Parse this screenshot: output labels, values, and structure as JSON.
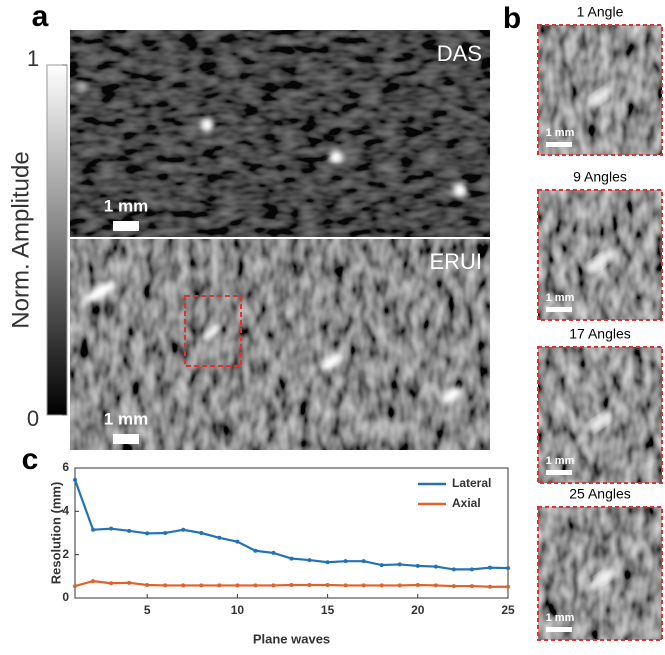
{
  "panel_a": {
    "label": "a",
    "images": [
      {
        "title": "DAS",
        "scale_bar": "1 mm"
      },
      {
        "title": "ERUI",
        "scale_bar": "1 mm"
      }
    ],
    "colorbar": {
      "title": "Norm. Amplitude",
      "range": [
        0,
        1
      ],
      "ticks": [
        0,
        1
      ]
    }
  },
  "panel_b": {
    "label": "b",
    "images": [
      {
        "title": "1 Angle",
        "scale_bar": "1 mm"
      },
      {
        "title": "9 Angles",
        "scale_bar": "1 mm"
      },
      {
        "title": "17 Angles",
        "scale_bar": "1 mm"
      },
      {
        "title": "25 Angles",
        "scale_bar": "1 mm"
      }
    ]
  },
  "panel_c": {
    "label": "c"
  },
  "chart_data": {
    "type": "line",
    "x_label": "Plane waves",
    "y_label": "Resolution (mm)",
    "x": [
      1,
      2,
      3,
      4,
      5,
      6,
      7,
      8,
      9,
      10,
      11,
      12,
      13,
      14,
      15,
      16,
      17,
      18,
      19,
      20,
      21,
      22,
      23,
      24,
      25
    ],
    "series": [
      {
        "name": "Lateral",
        "color": "#2272b5",
        "values": [
          5.45,
          3.15,
          3.2,
          3.1,
          2.98,
          3.0,
          3.15,
          3.0,
          2.78,
          2.6,
          2.18,
          2.08,
          1.82,
          1.75,
          1.65,
          1.7,
          1.7,
          1.52,
          1.55,
          1.48,
          1.45,
          1.32,
          1.32,
          1.4,
          1.38
        ]
      },
      {
        "name": "Axial",
        "color": "#e0622a",
        "values": [
          0.55,
          0.78,
          0.68,
          0.7,
          0.6,
          0.58,
          0.58,
          0.58,
          0.58,
          0.58,
          0.58,
          0.58,
          0.6,
          0.6,
          0.6,
          0.58,
          0.58,
          0.58,
          0.58,
          0.6,
          0.58,
          0.55,
          0.55,
          0.52,
          0.52
        ]
      }
    ],
    "xlim": [
      1,
      25
    ],
    "xticks": [
      5,
      10,
      15,
      20,
      25
    ],
    "ylim": [
      0,
      6
    ],
    "yticks": [
      0,
      2,
      4,
      6
    ],
    "legend": "upper right",
    "grid": false
  }
}
